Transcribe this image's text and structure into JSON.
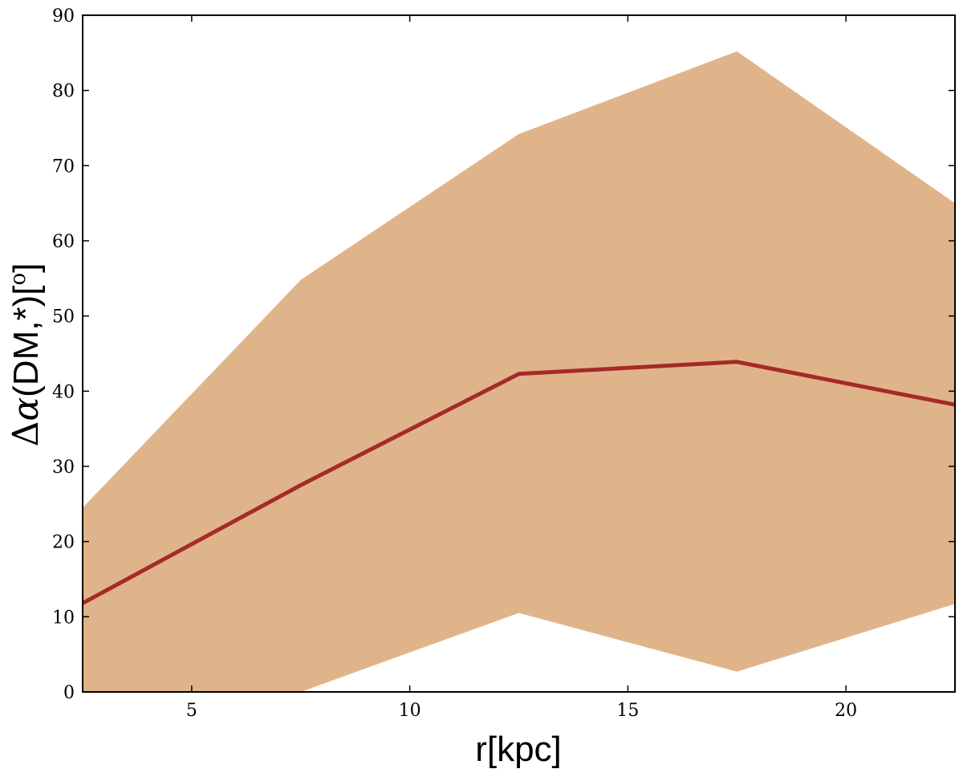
{
  "chart_data": {
    "type": "line",
    "x": [
      2.5,
      7.5,
      12.5,
      17.5,
      22.5
    ],
    "series": [
      {
        "values": [
          11.8,
          27.5,
          42.3,
          43.9,
          38.2
        ]
      }
    ],
    "band": {
      "lower": [
        0,
        0,
        10.5,
        2.7,
        11.7
      ],
      "upper": [
        24.5,
        54.8,
        74.2,
        85.2,
        65.0
      ]
    },
    "xlabel": "r[kpc]",
    "ylabel": "Δα(DM,*)[°]",
    "ylabel_parts": {
      "delta": "Δ",
      "alpha": "α",
      "rest": "(DM,*)[",
      "degree": "o",
      "close": "]"
    },
    "xlim": [
      2.5,
      22.5
    ],
    "ylim": [
      0,
      90
    ],
    "xticks": [
      5,
      10,
      15,
      20
    ],
    "yticks": [
      0,
      10,
      20,
      30,
      40,
      50,
      60,
      70,
      80,
      90
    ],
    "grid": false,
    "colors": {
      "line": "#a52a2a",
      "band": "#e0b48a"
    }
  }
}
